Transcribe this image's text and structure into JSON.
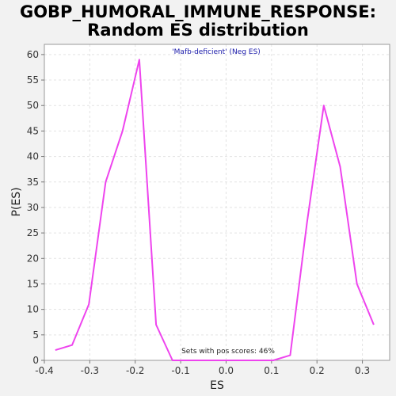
{
  "chart_data": {
    "type": "line",
    "title": "GOBP_HUMORAL_IMMUNE_RESPONSE:",
    "subtitle": "Random ES distribution",
    "xlabel": "ES",
    "ylabel": "P(ES)",
    "xlim": [
      -0.4,
      0.36
    ],
    "ylim": [
      0,
      62
    ],
    "xticks": [
      -0.4,
      -0.3,
      -0.2,
      -0.1,
      0.0,
      0.1,
      0.2,
      0.3
    ],
    "xtick_labels": [
      "-0.4",
      "-0.3",
      "-0.2",
      "-0.1",
      "0.0",
      "0.1",
      "0.2",
      "0.3"
    ],
    "yticks": [
      0,
      5,
      10,
      15,
      20,
      25,
      30,
      35,
      40,
      45,
      50,
      55,
      60
    ],
    "ytick_labels": [
      "0",
      "5",
      "10",
      "15",
      "20",
      "25",
      "30",
      "35",
      "40",
      "45",
      "50",
      "55",
      "60"
    ],
    "grid": true,
    "series": [
      {
        "color": "#ee44ee",
        "x": [
          -0.376,
          -0.339,
          -0.302,
          -0.265,
          -0.228,
          -0.191,
          -0.154,
          -0.118,
          -0.081,
          -0.044,
          -0.007,
          0.03,
          0.067,
          0.104,
          0.141,
          0.178,
          0.215,
          0.251,
          0.288,
          0.325
        ],
        "y": [
          2,
          3,
          11,
          35,
          45,
          59,
          7,
          0,
          0,
          0,
          0,
          0,
          0,
          0,
          1,
          27,
          50,
          38,
          15,
          7
        ]
      }
    ],
    "annotations": {
      "gene_set_label": "'Mafb-deficient' (Neg ES)",
      "gene_set_label_color": "#1a1aaa",
      "pos_scores": "Sets with pos scores: 46%"
    }
  }
}
